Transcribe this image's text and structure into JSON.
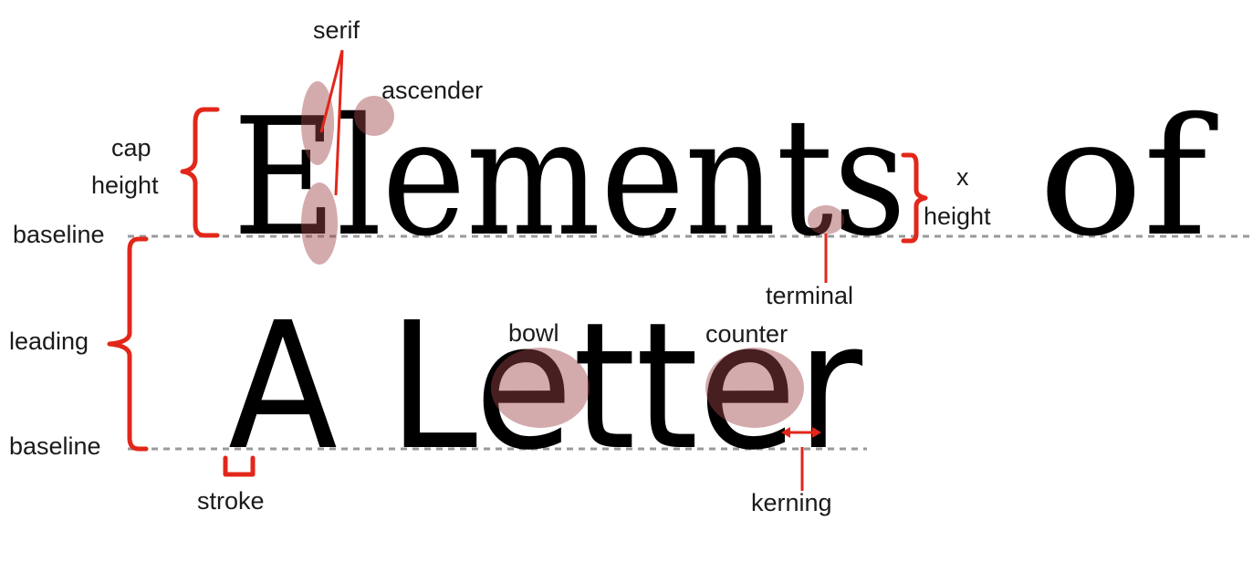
{
  "headline": {
    "line1_word1": "Elements",
    "line1_word2": "of",
    "line2": "A Letter"
  },
  "labels": {
    "serif": "serif",
    "ascender": "ascender",
    "cap_height_1": "cap",
    "cap_height_2": "height",
    "baseline_top": "baseline",
    "x_height_1": "x",
    "x_height_2": "height",
    "terminal": "terminal",
    "leading": "leading",
    "bowl": "bowl",
    "counter": "counter",
    "baseline_bottom": "baseline",
    "stroke": "stroke",
    "kerning": "kerning"
  },
  "colors": {
    "annotation_red": "#e2271a",
    "highlight": "#a0454a",
    "guide_line": "#9a9a9a",
    "text": "#000000"
  }
}
